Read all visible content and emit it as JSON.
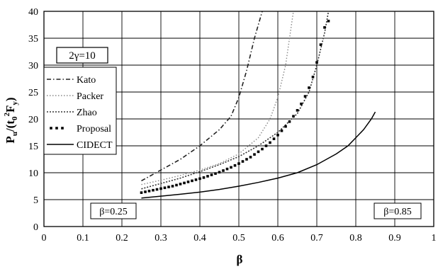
{
  "chart_data": {
    "type": "line",
    "xlabel": "β",
    "ylabel_parts": {
      "base": "P",
      "sub1": "u",
      "mid": "/(t",
      "sub2": "0",
      "sup": "2",
      "tail": "F",
      "sub3": "y",
      "close": ")"
    },
    "xlim": [
      0,
      1
    ],
    "ylim": [
      0,
      40
    ],
    "x_ticks": [
      0,
      0.1,
      0.2,
      0.3,
      0.4,
      0.5,
      0.6,
      0.7,
      0.8,
      0.9,
      1
    ],
    "x_tick_labels": [
      "0",
      "0.1",
      "0.2",
      "0.3",
      "0.4",
      "0.5",
      "0.6",
      "0.7",
      "0.8",
      "0.9",
      "1"
    ],
    "y_ticks": [
      0,
      5,
      10,
      15,
      20,
      25,
      30,
      35,
      40
    ],
    "y_tick_labels": [
      "0",
      "5",
      "10",
      "15",
      "20",
      "25",
      "30",
      "35",
      "40"
    ],
    "grid": true,
    "legend_position": "left",
    "gamma_label": "2γ=10",
    "annotations": {
      "left": "β=0.25",
      "right": "β=0.85"
    },
    "series": [
      {
        "name": "Kato",
        "style": "dash-dot",
        "color": "#222222",
        "x": [
          0.25,
          0.3,
          0.35,
          0.4,
          0.45,
          0.48,
          0.5,
          0.52,
          0.54,
          0.56
        ],
        "y": [
          8.5,
          10.5,
          12.5,
          15.0,
          18.0,
          20.5,
          24.0,
          29.0,
          35.0,
          40.0
        ]
      },
      {
        "name": "Packer",
        "style": "dotted-light",
        "color": "#888888",
        "x": [
          0.25,
          0.3,
          0.35,
          0.4,
          0.45,
          0.5,
          0.55,
          0.58,
          0.6,
          0.62,
          0.64
        ],
        "y": [
          7.8,
          8.6,
          9.5,
          10.5,
          11.7,
          13.5,
          16.5,
          20.0,
          24.0,
          30.0,
          40.0
        ]
      },
      {
        "name": "Zhao",
        "style": "dotted",
        "color": "#333333",
        "x": [
          0.25,
          0.3,
          0.35,
          0.4,
          0.45,
          0.5,
          0.55,
          0.6,
          0.65,
          0.68,
          0.7,
          0.72,
          0.73
        ],
        "y": [
          7.0,
          8.0,
          9.0,
          10.2,
          11.5,
          13.0,
          15.0,
          17.5,
          21.0,
          25.0,
          30.0,
          36.0,
          40.0
        ]
      },
      {
        "name": "Proposal",
        "style": "markers",
        "color": "#000000",
        "x": [
          0.25,
          0.26,
          0.27,
          0.28,
          0.29,
          0.3,
          0.31,
          0.32,
          0.33,
          0.34,
          0.35,
          0.36,
          0.37,
          0.38,
          0.39,
          0.4,
          0.41,
          0.42,
          0.43,
          0.44,
          0.45,
          0.46,
          0.47,
          0.48,
          0.49,
          0.5,
          0.51,
          0.52,
          0.53,
          0.54,
          0.55,
          0.56,
          0.57,
          0.58,
          0.59,
          0.6,
          0.61,
          0.62,
          0.63,
          0.64,
          0.65,
          0.66,
          0.67,
          0.68,
          0.69,
          0.7,
          0.71,
          0.72,
          0.73
        ],
        "y": [
          6.3,
          6.45,
          6.6,
          6.75,
          6.9,
          7.05,
          7.2,
          7.35,
          7.5,
          7.7,
          7.9,
          8.1,
          8.3,
          8.5,
          8.7,
          8.9,
          9.1,
          9.35,
          9.6,
          9.85,
          10.1,
          10.4,
          10.7,
          11.0,
          11.35,
          11.7,
          12.1,
          12.5,
          12.9,
          13.4,
          13.9,
          14.4,
          15.0,
          15.6,
          16.3,
          17.0,
          17.8,
          18.6,
          19.5,
          20.5,
          21.6,
          22.8,
          24.2,
          25.8,
          27.8,
          30.5,
          33.8,
          37.0,
          38.2
        ]
      },
      {
        "name": "CIDECT",
        "style": "solid",
        "color": "#000000",
        "x": [
          0.25,
          0.3,
          0.35,
          0.4,
          0.45,
          0.5,
          0.55,
          0.6,
          0.65,
          0.7,
          0.75,
          0.78,
          0.8,
          0.82,
          0.84,
          0.85
        ],
        "y": [
          5.3,
          5.65,
          6.0,
          6.4,
          6.9,
          7.5,
          8.2,
          9.0,
          10.0,
          11.5,
          13.5,
          15.0,
          16.5,
          18.0,
          20.0,
          21.3
        ]
      }
    ]
  }
}
